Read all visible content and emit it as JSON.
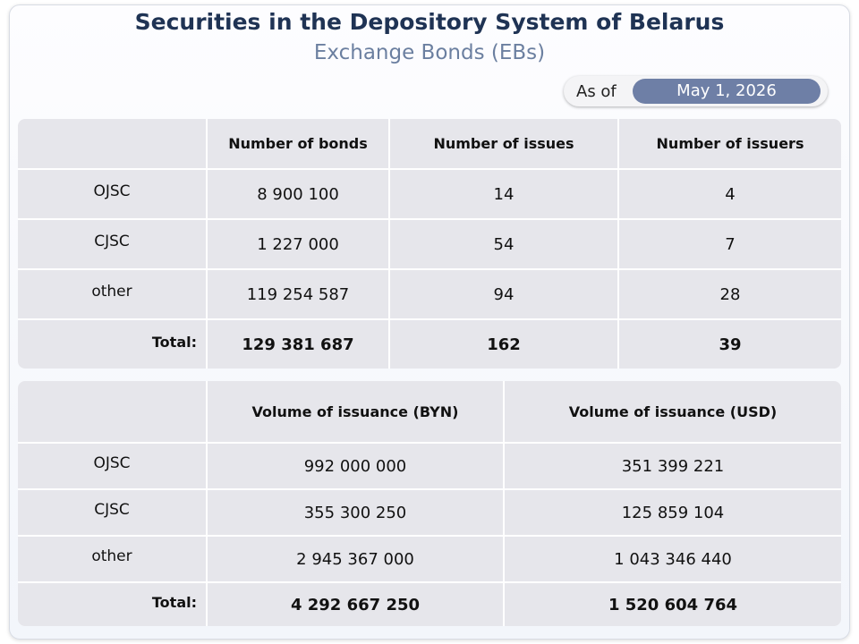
{
  "header": {
    "title": "Securities in the Depository System of Belarus",
    "subtitle": "Exchange Bonds (EBs)",
    "as_of_label": "As of",
    "as_of_date": "May 1, 2026"
  },
  "table1": {
    "columns": [
      "Number of bonds",
      "Number of issues",
      "Number of issuers"
    ],
    "rows": [
      [
        "OJSC",
        "8 900 100",
        "14",
        "4"
      ],
      [
        "CJSC",
        "1 227 000",
        "54",
        "7"
      ],
      [
        "other",
        "119 254 587",
        "94",
        "28"
      ]
    ],
    "total": [
      "Total:",
      "129 381 687",
      "162",
      "39"
    ]
  },
  "table2": {
    "columns": [
      "Volume of issuance (BYN)",
      "Volume of issuance (USD)"
    ],
    "rows": [
      [
        "OJSC",
        "992 000 000",
        "351 399 221"
      ],
      [
        "CJSC",
        "355 300 250",
        "125 859 104"
      ],
      [
        "other",
        "2 945 367 000",
        "1 043 346 440"
      ]
    ],
    "total": [
      "Total:",
      "4 292 667 250",
      "1 520 604 764"
    ]
  }
}
